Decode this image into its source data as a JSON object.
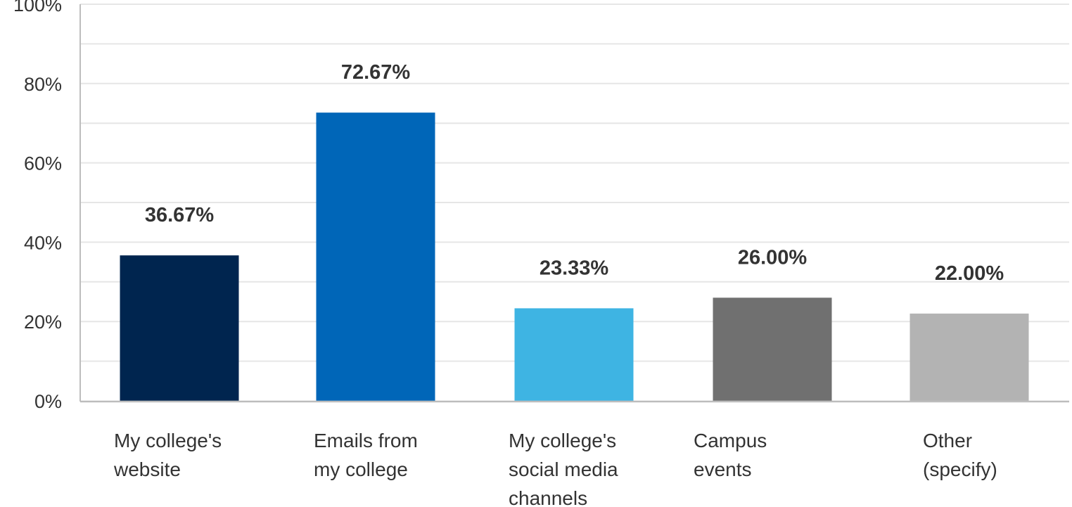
{
  "chart_data": {
    "type": "bar",
    "categories": [
      [
        "My college's",
        "website"
      ],
      [
        "Emails from",
        "my college"
      ],
      [
        "My college's",
        "social media",
        "channels"
      ],
      [
        "Campus",
        "events"
      ],
      [
        "Other",
        "(specify)"
      ]
    ],
    "values": [
      36.67,
      72.67,
      23.33,
      26.0,
      22.0
    ],
    "data_labels": [
      "36.67%",
      "72.67%",
      "23.33%",
      "26.00%",
      "22.00%"
    ],
    "colors": [
      "#00254F",
      "#0066B8",
      "#3EB4E3",
      "#707070",
      "#B3B3B3"
    ],
    "ylim": [
      0,
      100
    ],
    "yticks": [
      0,
      20,
      40,
      60,
      80,
      100
    ],
    "ytick_labels": [
      "0%",
      "20%",
      "40%",
      "60%",
      "80%",
      "100%"
    ],
    "grid": true,
    "grid_color": "#E6E6E6",
    "axis_color": "#BDBDBD"
  }
}
